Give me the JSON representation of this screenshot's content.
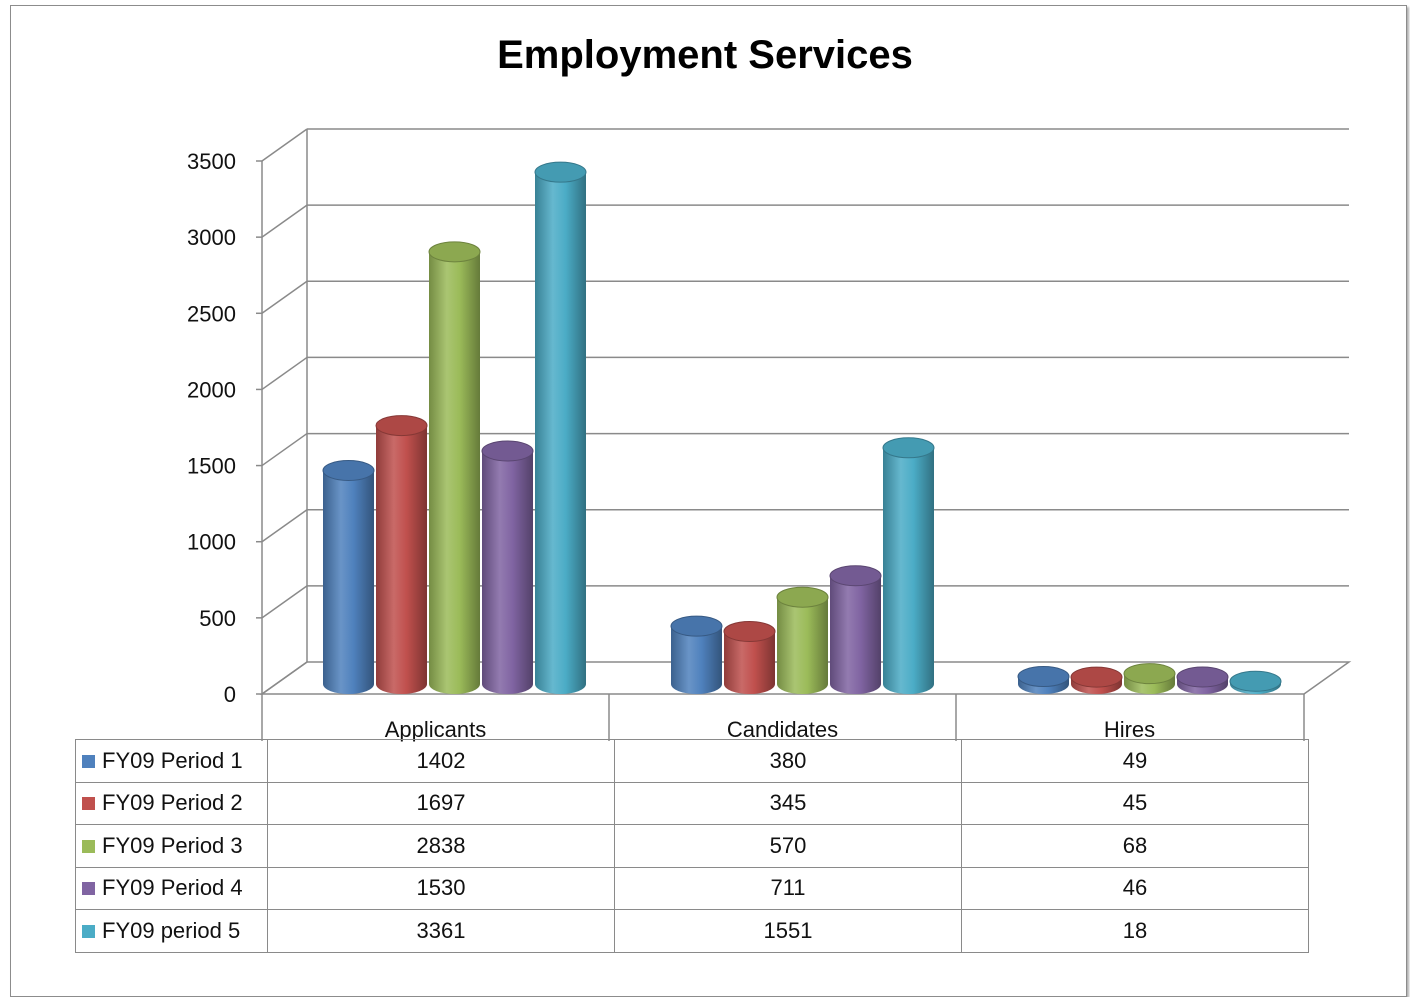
{
  "chart_data": {
    "type": "bar",
    "title": "Employment Services",
    "categories": [
      "Applicants",
      "Candidates",
      "Hires"
    ],
    "series": [
      {
        "name": "FY09 Period 1",
        "values": [
          1402,
          380,
          49
        ],
        "color": "#4f81bd"
      },
      {
        "name": "FY09 Period 2",
        "values": [
          1697,
          345,
          45
        ],
        "color": "#c0504d"
      },
      {
        "name": "FY09 Period 3",
        "values": [
          2838,
          570,
          68
        ],
        "color": "#9bbb59"
      },
      {
        "name": "FY09 Period 4",
        "values": [
          1530,
          711,
          46
        ],
        "color": "#8064a2"
      },
      {
        "name": "FY09 period 5",
        "values": [
          3361,
          1551,
          18
        ],
        "color": "#4bacc6"
      }
    ],
    "ylim": [
      0,
      3500
    ],
    "yticks": [
      0,
      500,
      1000,
      1500,
      2000,
      2500,
      3000,
      3500
    ],
    "grid": true,
    "legend": "data-table-below",
    "style": "3d-cylinder"
  }
}
